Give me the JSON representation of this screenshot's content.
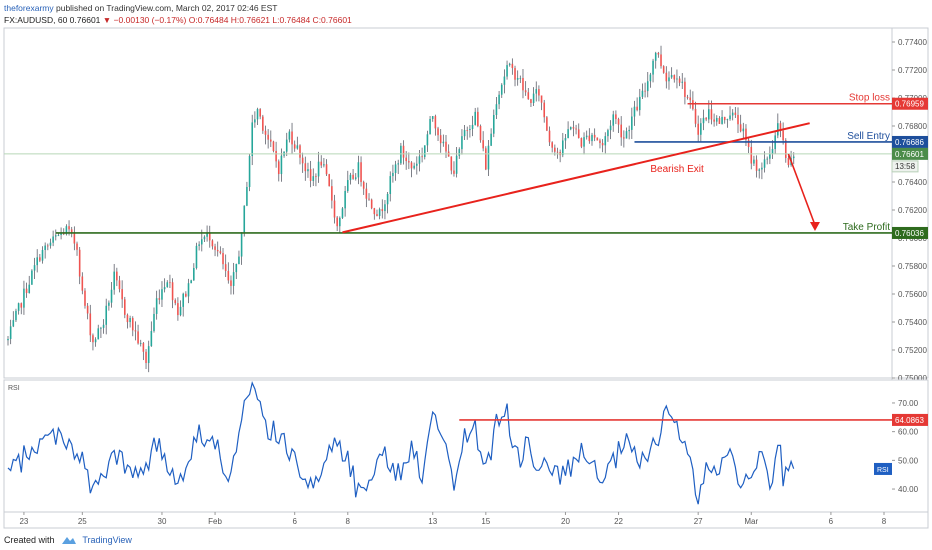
{
  "header": {
    "author": "theforexarmy",
    "published": "published on TradingView.com, March 02, 2017 02:46 EST",
    "symbol": "FX:AUDUSD, 60",
    "last": "0.76601",
    "change_icon": "triangle-down-icon",
    "change": "−0.00130 (−0.17%)",
    "ohlc": "O:0.76484 H:0.76621 L:0.76484 C:0.76601"
  },
  "footer": {
    "created_with": "Created with",
    "brand": "TradingView"
  },
  "colors": {
    "up": "#26a69a",
    "down": "#ef5350",
    "wick": "#5d606b",
    "stop_loss": "#e53935",
    "sell_entry": "#1e4f9c",
    "take_profit": "#2e6b1e",
    "last_price": "#4c8c4a",
    "trendline": "#e8221c",
    "rsi_line": "#1f5fc2",
    "rsi_level": "#e53935"
  },
  "chart_data": [
    {
      "type": "candlestick",
      "ylim": [
        0.75,
        0.775
      ],
      "y_ticks": [
        "0.77400",
        "0.77200",
        "0.77000",
        "0.76800",
        "0.76600",
        "0.76400",
        "0.76200",
        "0.76000",
        "0.75800",
        "0.75600",
        "0.75400",
        "0.75200",
        "0.75000"
      ],
      "x_range": [
        0,
        165
      ],
      "x_ticks": [
        {
          "label": "23",
          "x": 3
        },
        {
          "label": "25",
          "x": 14
        },
        {
          "label": "30",
          "x": 29
        },
        {
          "label": "Feb",
          "x": 39
        },
        {
          "label": "6",
          "x": 54
        },
        {
          "label": "8",
          "x": 64
        },
        {
          "label": "13",
          "x": 80
        },
        {
          "label": "15",
          "x": 90
        },
        {
          "label": "20",
          "x": 105
        },
        {
          "label": "22",
          "x": 115
        },
        {
          "label": "27",
          "x": 130
        },
        {
          "label": "Mar",
          "x": 140
        },
        {
          "label": "6",
          "x": 155
        },
        {
          "label": "8",
          "x": 165
        }
      ],
      "price_path": [
        [
          0,
          0.7527
        ],
        [
          3,
          0.756
        ],
        [
          6,
          0.7588
        ],
        [
          9,
          0.76
        ],
        [
          11,
          0.7606
        ],
        [
          13,
          0.7594
        ],
        [
          14,
          0.756
        ],
        [
          16,
          0.7526
        ],
        [
          18,
          0.754
        ],
        [
          20,
          0.7572
        ],
        [
          22,
          0.7548
        ],
        [
          24,
          0.7532
        ],
        [
          26,
          0.7512
        ],
        [
          28,
          0.7556
        ],
        [
          30,
          0.7572
        ],
        [
          32,
          0.7548
        ],
        [
          34,
          0.7566
        ],
        [
          36,
          0.7598
        ],
        [
          38,
          0.7602
        ],
        [
          40,
          0.7586
        ],
        [
          42,
          0.7562
        ],
        [
          44,
          0.76
        ],
        [
          45,
          0.764
        ],
        [
          46,
          0.768
        ],
        [
          47,
          0.7692
        ],
        [
          49,
          0.767
        ],
        [
          51,
          0.765
        ],
        [
          53,
          0.7675
        ],
        [
          55,
          0.766
        ],
        [
          57,
          0.764
        ],
        [
          59,
          0.7655
        ],
        [
          61,
          0.7628
        ],
        [
          62,
          0.7608
        ],
        [
          64,
          0.7638
        ],
        [
          66,
          0.765
        ],
        [
          68,
          0.7626
        ],
        [
          70,
          0.7617
        ],
        [
          72,
          0.764
        ],
        [
          74,
          0.7662
        ],
        [
          76,
          0.765
        ],
        [
          78,
          0.766
        ],
        [
          80,
          0.7688
        ],
        [
          82,
          0.7665
        ],
        [
          84,
          0.7648
        ],
        [
          86,
          0.7676
        ],
        [
          88,
          0.7688
        ],
        [
          90,
          0.7652
        ],
        [
          92,
          0.77
        ],
        [
          94,
          0.7722
        ],
        [
          96,
          0.7716
        ],
        [
          98,
          0.7698
        ],
        [
          100,
          0.7704
        ],
        [
          102,
          0.767
        ],
        [
          104,
          0.766
        ],
        [
          106,
          0.7682
        ],
        [
          108,
          0.7668
        ],
        [
          110,
          0.7675
        ],
        [
          112,
          0.7666
        ],
        [
          114,
          0.7688
        ],
        [
          116,
          0.7672
        ],
        [
          118,
          0.769
        ],
        [
          120,
          0.7706
        ],
        [
          122,
          0.7734
        ],
        [
          124,
          0.7715
        ],
        [
          126,
          0.7718
        ],
        [
          128,
          0.77
        ],
        [
          130,
          0.7678
        ],
        [
          132,
          0.769
        ],
        [
          134,
          0.7682
        ],
        [
          136,
          0.769
        ],
        [
          138,
          0.768
        ],
        [
          140,
          0.7656
        ],
        [
          142,
          0.7648
        ],
        [
          144,
          0.7666
        ],
        [
          145,
          0.768
        ],
        [
          146,
          0.7668
        ],
        [
          147,
          0.7648
        ],
        [
          148,
          0.766
        ]
      ],
      "levels": [
        {
          "name": "Stop loss",
          "value": 0.76959,
          "label": "0.76959",
          "from_x": 128
        },
        {
          "name": "Sell Entry",
          "value": 0.76686,
          "label": "0.76686",
          "from_x": 118
        },
        {
          "name": "Take Profit",
          "value": 0.76036,
          "label": "0.76036",
          "from_x": 9
        }
      ],
      "last_price": {
        "value": 0.76601,
        "label": "0.76601",
        "countdown": "13:58"
      },
      "trendline": {
        "points": [
          [
            63,
            0.7604
          ],
          [
            151,
            0.7682
          ]
        ]
      },
      "arrow": {
        "from": [
          147,
          0.766
        ],
        "to": [
          152,
          0.7605
        ]
      },
      "annotations": [
        {
          "text": "Stop loss",
          "color_key": "stop_loss"
        },
        {
          "text": "Sell Entry",
          "color_key": "sell_entry"
        },
        {
          "text": "Take Profit",
          "color_key": "take_profit"
        },
        {
          "text": "Bearish Exit",
          "color_key": "trendline"
        }
      ]
    },
    {
      "type": "line",
      "title": "RSI",
      "ylim": [
        32,
        78
      ],
      "y_ticks": [
        "70.00",
        "60.00",
        "50.00",
        "40.00"
      ],
      "rsi_path": [
        [
          0,
          45
        ],
        [
          5,
          55
        ],
        [
          10,
          60
        ],
        [
          14,
          50
        ],
        [
          16,
          38
        ],
        [
          20,
          52
        ],
        [
          24,
          44
        ],
        [
          28,
          55
        ],
        [
          32,
          43
        ],
        [
          36,
          60
        ],
        [
          40,
          52
        ],
        [
          42,
          44
        ],
        [
          44,
          64
        ],
        [
          46,
          76
        ],
        [
          48,
          64
        ],
        [
          52,
          55
        ],
        [
          56,
          46
        ],
        [
          58,
          40
        ],
        [
          60,
          52
        ],
        [
          62,
          58
        ],
        [
          64,
          50
        ],
        [
          66,
          38
        ],
        [
          70,
          53
        ],
        [
          74,
          44
        ],
        [
          76,
          56
        ],
        [
          78,
          45
        ],
        [
          80,
          70
        ],
        [
          82,
          56
        ],
        [
          84,
          42
        ],
        [
          86,
          58
        ],
        [
          88,
          62
        ],
        [
          90,
          45
        ],
        [
          92,
          63
        ],
        [
          94,
          66
        ],
        [
          96,
          50
        ],
        [
          98,
          56
        ],
        [
          100,
          48
        ],
        [
          104,
          44
        ],
        [
          108,
          52
        ],
        [
          112,
          42
        ],
        [
          116,
          56
        ],
        [
          120,
          48
        ],
        [
          122,
          56
        ],
        [
          124,
          68
        ],
        [
          126,
          62
        ],
        [
          128,
          52
        ],
        [
          130,
          38
        ],
        [
          132,
          48
        ],
        [
          134,
          44
        ],
        [
          136,
          56
        ],
        [
          138,
          40
        ],
        [
          140,
          48
        ],
        [
          142,
          52
        ],
        [
          144,
          40
        ],
        [
          145,
          58
        ],
        [
          146,
          44
        ],
        [
          148,
          47
        ]
      ],
      "level": {
        "value": 64.0863,
        "label": "64.0863",
        "from_x": 85
      },
      "last_label": "RSI"
    }
  ]
}
